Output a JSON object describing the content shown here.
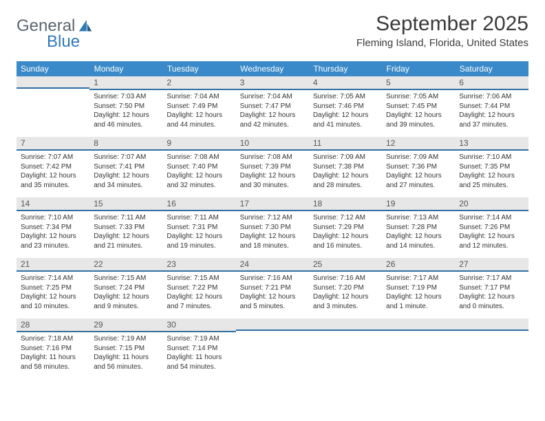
{
  "logo": {
    "text1": "General",
    "text2": "Blue"
  },
  "title": "September 2025",
  "location": "Fleming Island, Florida, United States",
  "colors": {
    "header_bg": "#3a8ac9",
    "header_text": "#ffffff",
    "daybar_bg": "#e7e7e7",
    "daybar_border": "#2f6ea3",
    "logo_gray": "#5a6670",
    "logo_blue": "#2f79b9",
    "page_bg": "#ffffff",
    "text": "#333333"
  },
  "typography": {
    "month_title_size": 30,
    "location_size": 15,
    "weekday_size": 12,
    "daynum_size": 12,
    "body_size": 10
  },
  "weekdays": [
    "Sunday",
    "Monday",
    "Tuesday",
    "Wednesday",
    "Thursday",
    "Friday",
    "Saturday"
  ],
  "weeks": [
    [
      null,
      {
        "n": "1",
        "sr": "7:03 AM",
        "ss": "7:50 PM",
        "dl": "12 hours and 46 minutes."
      },
      {
        "n": "2",
        "sr": "7:04 AM",
        "ss": "7:49 PM",
        "dl": "12 hours and 44 minutes."
      },
      {
        "n": "3",
        "sr": "7:04 AM",
        "ss": "7:47 PM",
        "dl": "12 hours and 42 minutes."
      },
      {
        "n": "4",
        "sr": "7:05 AM",
        "ss": "7:46 PM",
        "dl": "12 hours and 41 minutes."
      },
      {
        "n": "5",
        "sr": "7:05 AM",
        "ss": "7:45 PM",
        "dl": "12 hours and 39 minutes."
      },
      {
        "n": "6",
        "sr": "7:06 AM",
        "ss": "7:44 PM",
        "dl": "12 hours and 37 minutes."
      }
    ],
    [
      {
        "n": "7",
        "sr": "7:07 AM",
        "ss": "7:42 PM",
        "dl": "12 hours and 35 minutes."
      },
      {
        "n": "8",
        "sr": "7:07 AM",
        "ss": "7:41 PM",
        "dl": "12 hours and 34 minutes."
      },
      {
        "n": "9",
        "sr": "7:08 AM",
        "ss": "7:40 PM",
        "dl": "12 hours and 32 minutes."
      },
      {
        "n": "10",
        "sr": "7:08 AM",
        "ss": "7:39 PM",
        "dl": "12 hours and 30 minutes."
      },
      {
        "n": "11",
        "sr": "7:09 AM",
        "ss": "7:38 PM",
        "dl": "12 hours and 28 minutes."
      },
      {
        "n": "12",
        "sr": "7:09 AM",
        "ss": "7:36 PM",
        "dl": "12 hours and 27 minutes."
      },
      {
        "n": "13",
        "sr": "7:10 AM",
        "ss": "7:35 PM",
        "dl": "12 hours and 25 minutes."
      }
    ],
    [
      {
        "n": "14",
        "sr": "7:10 AM",
        "ss": "7:34 PM",
        "dl": "12 hours and 23 minutes."
      },
      {
        "n": "15",
        "sr": "7:11 AM",
        "ss": "7:33 PM",
        "dl": "12 hours and 21 minutes."
      },
      {
        "n": "16",
        "sr": "7:11 AM",
        "ss": "7:31 PM",
        "dl": "12 hours and 19 minutes."
      },
      {
        "n": "17",
        "sr": "7:12 AM",
        "ss": "7:30 PM",
        "dl": "12 hours and 18 minutes."
      },
      {
        "n": "18",
        "sr": "7:12 AM",
        "ss": "7:29 PM",
        "dl": "12 hours and 16 minutes."
      },
      {
        "n": "19",
        "sr": "7:13 AM",
        "ss": "7:28 PM",
        "dl": "12 hours and 14 minutes."
      },
      {
        "n": "20",
        "sr": "7:14 AM",
        "ss": "7:26 PM",
        "dl": "12 hours and 12 minutes."
      }
    ],
    [
      {
        "n": "21",
        "sr": "7:14 AM",
        "ss": "7:25 PM",
        "dl": "12 hours and 10 minutes."
      },
      {
        "n": "22",
        "sr": "7:15 AM",
        "ss": "7:24 PM",
        "dl": "12 hours and 9 minutes."
      },
      {
        "n": "23",
        "sr": "7:15 AM",
        "ss": "7:22 PM",
        "dl": "12 hours and 7 minutes."
      },
      {
        "n": "24",
        "sr": "7:16 AM",
        "ss": "7:21 PM",
        "dl": "12 hours and 5 minutes."
      },
      {
        "n": "25",
        "sr": "7:16 AM",
        "ss": "7:20 PM",
        "dl": "12 hours and 3 minutes."
      },
      {
        "n": "26",
        "sr": "7:17 AM",
        "ss": "7:19 PM",
        "dl": "12 hours and 1 minute."
      },
      {
        "n": "27",
        "sr": "7:17 AM",
        "ss": "7:17 PM",
        "dl": "12 hours and 0 minutes."
      }
    ],
    [
      {
        "n": "28",
        "sr": "7:18 AM",
        "ss": "7:16 PM",
        "dl": "11 hours and 58 minutes."
      },
      {
        "n": "29",
        "sr": "7:19 AM",
        "ss": "7:15 PM",
        "dl": "11 hours and 56 minutes."
      },
      {
        "n": "30",
        "sr": "7:19 AM",
        "ss": "7:14 PM",
        "dl": "11 hours and 54 minutes."
      },
      null,
      null,
      null,
      null
    ]
  ],
  "labels": {
    "sunrise": "Sunrise:",
    "sunset": "Sunset:",
    "daylight": "Daylight:"
  }
}
